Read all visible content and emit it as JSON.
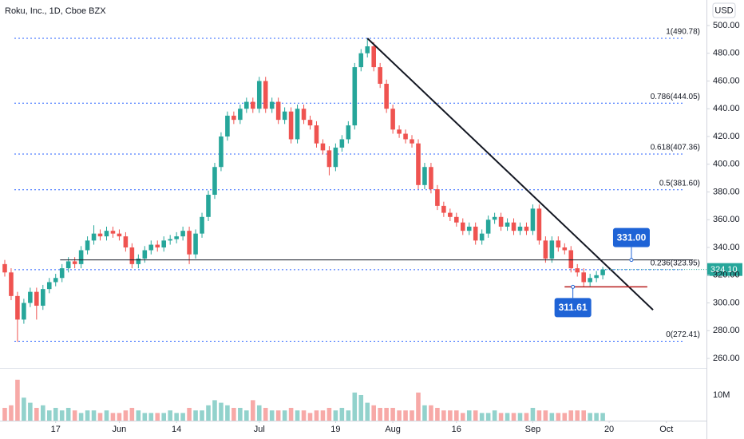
{
  "chart_data": {
    "type": "candlestick",
    "title": "Roku, Inc., 1D, Cboe BZX",
    "currency": "USD",
    "up_color": "#26a69a",
    "down_color": "#ef5350",
    "xlim": [
      -0.75,
      110.3
    ],
    "xticks": [
      {
        "value": 8,
        "label": "17"
      },
      {
        "value": 18,
        "label": "Jun"
      },
      {
        "value": 27,
        "label": "14"
      },
      {
        "value": 40,
        "label": "Jul"
      },
      {
        "value": 52,
        "label": "19"
      },
      {
        "value": 61,
        "label": "Aug"
      },
      {
        "value": 71,
        "label": "16"
      },
      {
        "value": 83,
        "label": "Sep"
      },
      {
        "value": 95,
        "label": "20"
      },
      {
        "value": 104,
        "label": "Oct"
      }
    ],
    "ylim": [
      253.7,
      518.4
    ],
    "yticks": [
      {
        "value": 260,
        "label": "260.00"
      },
      {
        "value": 280,
        "label": "280.00"
      },
      {
        "value": 300,
        "label": "300.00"
      },
      {
        "value": 320,
        "label": "320.00"
      },
      {
        "value": 340,
        "label": "340.00"
      },
      {
        "value": 360,
        "label": "360.00"
      },
      {
        "value": 380,
        "label": "380.00"
      },
      {
        "value": 400,
        "label": "400.00"
      },
      {
        "value": 420,
        "label": "420.00"
      },
      {
        "value": 440,
        "label": "440.00"
      },
      {
        "value": 460,
        "label": "460.00"
      },
      {
        "value": 480,
        "label": "480.00"
      },
      {
        "value": 500,
        "label": "500.00"
      }
    ],
    "open": [
      328,
      322,
      305,
      288,
      300,
      308,
      298,
      310,
      315,
      318,
      325,
      330,
      328,
      338,
      345,
      350,
      348,
      352,
      350,
      348,
      340,
      328,
      332,
      338,
      342,
      340,
      345,
      346,
      348,
      352,
      335,
      350,
      362,
      378,
      398,
      420,
      435,
      432,
      440,
      445,
      440,
      460,
      440,
      445,
      432,
      438,
      418,
      440,
      432,
      428,
      415,
      410,
      398,
      412,
      418,
      428,
      470,
      480,
      485,
      470,
      458,
      440,
      425,
      422,
      418,
      415,
      385,
      398,
      382,
      370,
      365,
      362,
      358,
      352,
      355,
      345,
      350,
      360,
      362,
      355,
      358,
      352,
      355,
      352,
      368,
      345,
      332,
      345,
      340,
      338,
      325,
      322,
      315,
      318,
      320
    ],
    "high": [
      331,
      325,
      308,
      303,
      311,
      311,
      313,
      318,
      321,
      328,
      333,
      333,
      341,
      348,
      356,
      353,
      355,
      355,
      353,
      351,
      343,
      335,
      341,
      345,
      345,
      348,
      349,
      351,
      355,
      355,
      353,
      365,
      381,
      401,
      423,
      438,
      438,
      443,
      448,
      448,
      463,
      463,
      448,
      448,
      441,
      441,
      443,
      443,
      435,
      431,
      418,
      413,
      415,
      421,
      431,
      473,
      483,
      490.78,
      488,
      473,
      461,
      443,
      428,
      425,
      421,
      418,
      401,
      401,
      385,
      373,
      368,
      365,
      361,
      358,
      358,
      353,
      363,
      365,
      365,
      361,
      361,
      358,
      358,
      371,
      371,
      348,
      348,
      348,
      343,
      341,
      328,
      325,
      321,
      323,
      326
    ],
    "low": [
      319,
      302,
      272,
      285,
      297,
      288,
      295,
      307,
      312,
      315,
      322,
      325,
      325,
      335,
      342,
      345,
      345,
      347,
      345,
      337,
      325,
      325,
      329,
      335,
      337,
      337,
      342,
      343,
      345,
      328,
      332,
      347,
      359,
      375,
      395,
      417,
      429,
      429,
      437,
      437,
      437,
      437,
      437,
      429,
      429,
      415,
      415,
      429,
      425,
      412,
      407,
      392,
      395,
      409,
      415,
      425,
      467,
      477,
      467,
      455,
      437,
      422,
      419,
      415,
      412,
      382,
      382,
      379,
      367,
      362,
      359,
      355,
      349,
      349,
      342,
      342,
      347,
      357,
      352,
      352,
      349,
      349,
      349,
      349,
      342,
      329,
      329,
      337,
      335,
      322,
      319,
      311.61,
      312,
      315,
      317
    ],
    "close": [
      322,
      305,
      288,
      300,
      308,
      298,
      310,
      315,
      318,
      325,
      330,
      328,
      338,
      345,
      350,
      348,
      352,
      350,
      348,
      340,
      328,
      332,
      338,
      342,
      340,
      345,
      346,
      348,
      352,
      335,
      350,
      362,
      378,
      398,
      420,
      435,
      432,
      440,
      445,
      440,
      460,
      440,
      445,
      432,
      438,
      418,
      440,
      432,
      428,
      415,
      410,
      398,
      412,
      418,
      428,
      470,
      480,
      485,
      470,
      458,
      440,
      425,
      422,
      418,
      415,
      385,
      398,
      382,
      370,
      365,
      362,
      358,
      352,
      355,
      345,
      350,
      360,
      362,
      355,
      358,
      352,
      355,
      352,
      368,
      345,
      332,
      345,
      340,
      338,
      325,
      322,
      315,
      318,
      320,
      324.1
    ],
    "last_price_label": "324.10",
    "volume": [
      5,
      6,
      16,
      9,
      7,
      5,
      6,
      4,
      5,
      4,
      5,
      4,
      3,
      4,
      4,
      3,
      4,
      3,
      3,
      4,
      5,
      4,
      3,
      3,
      3,
      3,
      4,
      3,
      3,
      5,
      4,
      4,
      6,
      8,
      7,
      6,
      5,
      5,
      4,
      8,
      6,
      5,
      4,
      4,
      4,
      5,
      4,
      4,
      3,
      4,
      4,
      5,
      4,
      5,
      4,
      11,
      10,
      7,
      6,
      5,
      5,
      5,
      4,
      4,
      4,
      11,
      6,
      6,
      5,
      4,
      4,
      4,
      3,
      4,
      4,
      3,
      3,
      4,
      3,
      3,
      3,
      3,
      3,
      5,
      4,
      4,
      3,
      3,
      3,
      4,
      4,
      4,
      3,
      3,
      3
    ],
    "volume_lim": [
      0,
      20.3
    ],
    "volume_ticks": [
      {
        "value": 10,
        "label": "10M"
      }
    ],
    "fib_levels": [
      {
        "value": 490.78,
        "label": "1(490.78)"
      },
      {
        "value": 444.05,
        "label": "0.786(444.05)"
      },
      {
        "value": 407.36,
        "label": "0.618(407.36)"
      },
      {
        "value": 381.6,
        "label": "0.5(381.60)"
      },
      {
        "value": 323.95,
        "label": "0.236(323.95)"
      },
      {
        "value": 272.41,
        "label": "0(272.41)"
      }
    ],
    "fib_color": "#2962ff",
    "trend_line": {
      "x": [
        57,
        101.9
      ],
      "y": [
        490.78,
        295
      ]
    },
    "support_line": {
      "x": [
        8.7,
        108.2
      ],
      "y": [
        331,
        331
      ]
    },
    "low_line": {
      "x": [
        88,
        101
      ],
      "y": [
        311.61,
        311.61
      ],
      "color": "#b71c1c"
    },
    "callouts": [
      {
        "x": 98.5,
        "value": 331,
        "label": "331.00",
        "anchor": "above"
      },
      {
        "x": 89.3,
        "value": 311.61,
        "label": "311.61",
        "anchor": "below"
      }
    ],
    "callout_color": "#1e63d6"
  }
}
